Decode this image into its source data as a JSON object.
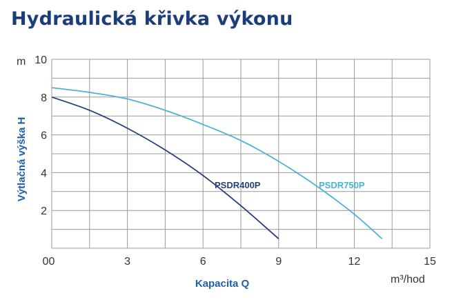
{
  "title": "Hydraulická křivka výkonu",
  "colors": {
    "title": "#1a3d7c",
    "axis_label": "#1f5fa8",
    "grid": "#9a9a9a",
    "text": "#333333"
  },
  "chart_data": {
    "type": "line",
    "title": "Hydraulická křivka výkonu",
    "xlabel": "Kapacita Q",
    "ylabel": "Výtlačná výška H",
    "x_unit": "m³/hod",
    "y_unit": "m",
    "xlim": [
      0,
      15
    ],
    "ylim": [
      0,
      10
    ],
    "x_ticks": [
      0,
      3,
      6,
      9,
      12,
      15
    ],
    "y_ticks": [
      0,
      2,
      4,
      6,
      8,
      10
    ],
    "grid": true,
    "grid_step_x": 1.5,
    "grid_step_y": 1,
    "series": [
      {
        "name": "PSDR400P",
        "color": "#243f7a",
        "x": [
          0,
          1.5,
          3,
          4.5,
          6,
          7.5,
          9
        ],
        "y": [
          8.0,
          7.3,
          6.35,
          5.2,
          3.85,
          2.25,
          0.5
        ]
      },
      {
        "name": "PSDR750P",
        "color": "#4bb3d6",
        "x": [
          0,
          1.5,
          3,
          4.5,
          6,
          7.5,
          9,
          10.5,
          12,
          13.1
        ],
        "y": [
          8.5,
          8.25,
          7.9,
          7.3,
          6.55,
          5.7,
          4.6,
          3.3,
          1.8,
          0.5
        ]
      }
    ]
  }
}
